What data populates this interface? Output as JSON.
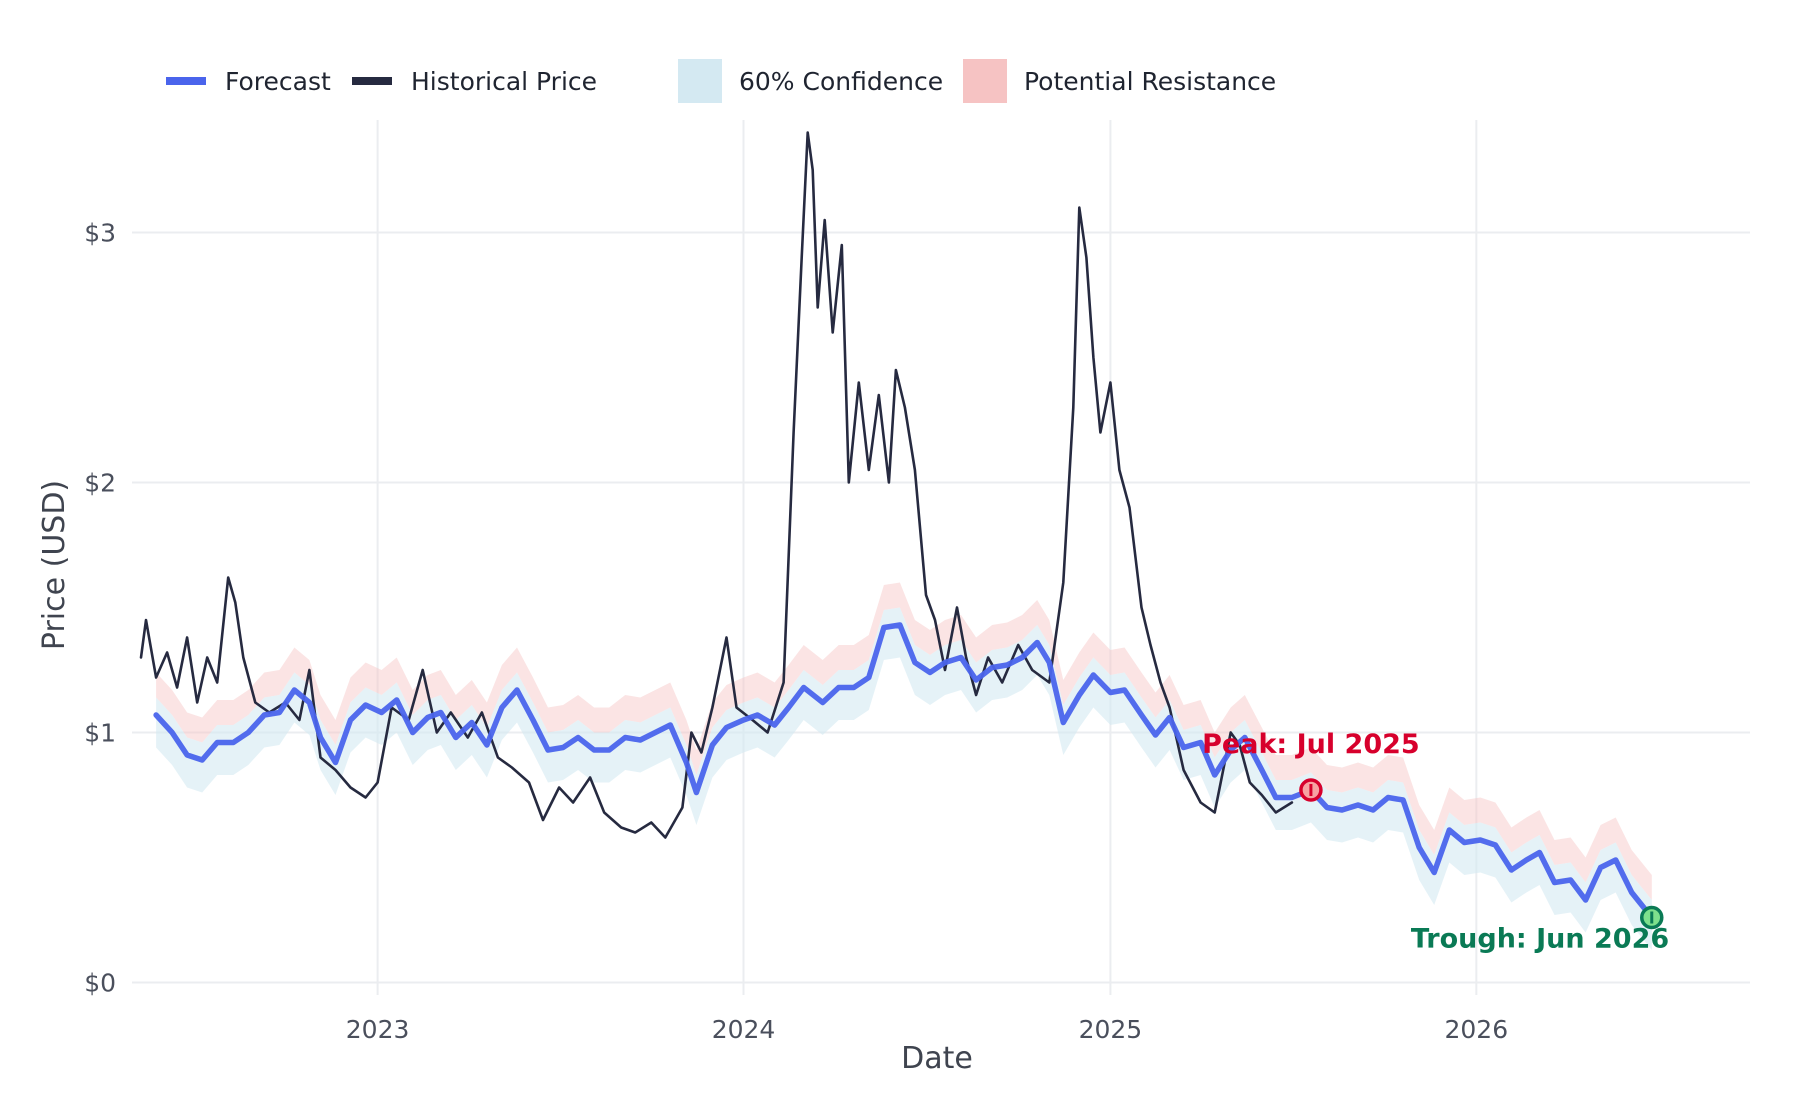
{
  "chart_data": {
    "type": "line",
    "xlabel": "Date",
    "ylabel": "Price (USD)",
    "xlim": [
      "2022-05-01",
      "2026-10-01"
    ],
    "ylim": [
      -0.05,
      3.45
    ],
    "x_ticks": [
      {
        "date": "2023-01-01",
        "label": "2023"
      },
      {
        "date": "2024-01-01",
        "label": "2024"
      },
      {
        "date": "2025-01-01",
        "label": "2025"
      },
      {
        "date": "2026-01-01",
        "label": "2026"
      }
    ],
    "y_ticks": [
      {
        "value": 0,
        "label": "$0"
      },
      {
        "value": 1,
        "label": "$1"
      },
      {
        "value": 2,
        "label": "$2"
      },
      {
        "value": 3,
        "label": "$3"
      }
    ],
    "grid": true,
    "legend": {
      "position": "top",
      "items": [
        {
          "key": "forecast",
          "label": "Forecast",
          "color": "#4a64ec",
          "kind": "line"
        },
        {
          "key": "historical",
          "label": "Historical Price",
          "color": "#262a40",
          "kind": "line"
        },
        {
          "key": "confidence",
          "label": "60% Confidence",
          "color": "#d4e9f2",
          "kind": "band"
        },
        {
          "key": "resistance",
          "label": "Potential Resistance",
          "color": "#f6c3c3",
          "kind": "band"
        }
      ]
    },
    "series": [
      {
        "name": "Historical Price",
        "color": "#262a40",
        "points": [
          [
            "2022-05-10",
            1.3
          ],
          [
            "2022-05-15",
            1.45
          ],
          [
            "2022-05-25",
            1.22
          ],
          [
            "2022-06-05",
            1.32
          ],
          [
            "2022-06-15",
            1.18
          ],
          [
            "2022-06-25",
            1.38
          ],
          [
            "2022-07-05",
            1.12
          ],
          [
            "2022-07-15",
            1.3
          ],
          [
            "2022-07-25",
            1.2
          ],
          [
            "2022-08-05",
            1.62
          ],
          [
            "2022-08-12",
            1.52
          ],
          [
            "2022-08-20",
            1.3
          ],
          [
            "2022-09-01",
            1.12
          ],
          [
            "2022-09-15",
            1.08
          ],
          [
            "2022-10-01",
            1.12
          ],
          [
            "2022-10-15",
            1.05
          ],
          [
            "2022-10-25",
            1.25
          ],
          [
            "2022-11-05",
            0.9
          ],
          [
            "2022-11-20",
            0.85
          ],
          [
            "2022-12-05",
            0.78
          ],
          [
            "2022-12-20",
            0.74
          ],
          [
            "2023-01-01",
            0.8
          ],
          [
            "2023-01-15",
            1.1
          ],
          [
            "2023-02-01",
            1.05
          ],
          [
            "2023-02-15",
            1.25
          ],
          [
            "2023-03-01",
            1.0
          ],
          [
            "2023-03-15",
            1.08
          ],
          [
            "2023-04-01",
            0.98
          ],
          [
            "2023-04-15",
            1.08
          ],
          [
            "2023-05-01",
            0.9
          ],
          [
            "2023-05-15",
            0.86
          ],
          [
            "2023-06-01",
            0.8
          ],
          [
            "2023-06-15",
            0.65
          ],
          [
            "2023-07-01",
            0.78
          ],
          [
            "2023-07-15",
            0.72
          ],
          [
            "2023-08-01",
            0.82
          ],
          [
            "2023-08-15",
            0.68
          ],
          [
            "2023-09-01",
            0.62
          ],
          [
            "2023-09-15",
            0.6
          ],
          [
            "2023-10-01",
            0.64
          ],
          [
            "2023-10-15",
            0.58
          ],
          [
            "2023-11-01",
            0.7
          ],
          [
            "2023-11-10",
            1.0
          ],
          [
            "2023-11-20",
            0.92
          ],
          [
            "2023-12-01",
            1.1
          ],
          [
            "2023-12-15",
            1.38
          ],
          [
            "2023-12-25",
            1.1
          ],
          [
            "2024-01-10",
            1.05
          ],
          [
            "2024-01-25",
            1.0
          ],
          [
            "2024-02-10",
            1.2
          ],
          [
            "2024-02-20",
            2.2
          ],
          [
            "2024-02-28",
            2.9
          ],
          [
            "2024-03-05",
            3.4
          ],
          [
            "2024-03-10",
            3.25
          ],
          [
            "2024-03-15",
            2.7
          ],
          [
            "2024-03-22",
            3.05
          ],
          [
            "2024-03-30",
            2.6
          ],
          [
            "2024-04-08",
            2.95
          ],
          [
            "2024-04-15",
            2.0
          ],
          [
            "2024-04-25",
            2.4
          ],
          [
            "2024-05-05",
            2.05
          ],
          [
            "2024-05-15",
            2.35
          ],
          [
            "2024-05-25",
            2.0
          ],
          [
            "2024-06-01",
            2.45
          ],
          [
            "2024-06-10",
            2.3
          ],
          [
            "2024-06-20",
            2.05
          ],
          [
            "2024-07-01",
            1.55
          ],
          [
            "2024-07-10",
            1.45
          ],
          [
            "2024-07-20",
            1.25
          ],
          [
            "2024-08-01",
            1.5
          ],
          [
            "2024-08-10",
            1.3
          ],
          [
            "2024-08-20",
            1.15
          ],
          [
            "2024-09-01",
            1.3
          ],
          [
            "2024-09-15",
            1.2
          ],
          [
            "2024-10-01",
            1.35
          ],
          [
            "2024-10-15",
            1.25
          ],
          [
            "2024-11-01",
            1.2
          ],
          [
            "2024-11-15",
            1.6
          ],
          [
            "2024-11-25",
            2.3
          ],
          [
            "2024-12-01",
            3.1
          ],
          [
            "2024-12-08",
            2.9
          ],
          [
            "2024-12-15",
            2.5
          ],
          [
            "2024-12-22",
            2.2
          ],
          [
            "2025-01-01",
            2.4
          ],
          [
            "2025-01-10",
            2.05
          ],
          [
            "2025-01-20",
            1.9
          ],
          [
            "2025-02-01",
            1.5
          ],
          [
            "2025-02-10",
            1.35
          ],
          [
            "2025-02-20",
            1.2
          ],
          [
            "2025-03-01",
            1.1
          ],
          [
            "2025-03-15",
            0.85
          ],
          [
            "2025-04-01",
            0.72
          ],
          [
            "2025-04-15",
            0.68
          ],
          [
            "2025-05-01",
            1.0
          ],
          [
            "2025-05-10",
            0.95
          ],
          [
            "2025-05-20",
            0.8
          ],
          [
            "2025-06-01",
            0.75
          ],
          [
            "2025-06-15",
            0.68
          ],
          [
            "2025-07-01",
            0.72
          ]
        ]
      },
      {
        "name": "Forecast",
        "color": "#4a64ec",
        "points": [
          [
            "2022-05-25",
            1.07
          ],
          [
            "2022-06-10",
            1.0
          ],
          [
            "2022-06-25",
            0.91
          ],
          [
            "2022-07-10",
            0.89
          ],
          [
            "2022-07-25",
            0.96
          ],
          [
            "2022-08-10",
            0.96
          ],
          [
            "2022-08-25",
            1.0
          ],
          [
            "2022-09-10",
            1.07
          ],
          [
            "2022-09-25",
            1.08
          ],
          [
            "2022-10-10",
            1.17
          ],
          [
            "2022-10-25",
            1.12
          ],
          [
            "2022-11-05",
            0.98
          ],
          [
            "2022-11-20",
            0.88
          ],
          [
            "2022-12-05",
            1.05
          ],
          [
            "2022-12-20",
            1.11
          ],
          [
            "2023-01-05",
            1.08
          ],
          [
            "2023-01-20",
            1.13
          ],
          [
            "2023-02-05",
            1.0
          ],
          [
            "2023-02-20",
            1.06
          ],
          [
            "2023-03-05",
            1.08
          ],
          [
            "2023-03-20",
            0.98
          ],
          [
            "2023-04-05",
            1.04
          ],
          [
            "2023-04-20",
            0.95
          ],
          [
            "2023-05-05",
            1.1
          ],
          [
            "2023-05-20",
            1.17
          ],
          [
            "2023-06-05",
            1.05
          ],
          [
            "2023-06-20",
            0.93
          ],
          [
            "2023-07-05",
            0.94
          ],
          [
            "2023-07-20",
            0.98
          ],
          [
            "2023-08-05",
            0.93
          ],
          [
            "2023-08-20",
            0.93
          ],
          [
            "2023-09-05",
            0.98
          ],
          [
            "2023-09-20",
            0.97
          ],
          [
            "2023-10-05",
            1.0
          ],
          [
            "2023-10-20",
            1.03
          ],
          [
            "2023-11-05",
            0.88
          ],
          [
            "2023-11-15",
            0.76
          ],
          [
            "2023-12-01",
            0.95
          ],
          [
            "2023-12-15",
            1.02
          ],
          [
            "2024-01-01",
            1.05
          ],
          [
            "2024-01-15",
            1.07
          ],
          [
            "2024-02-01",
            1.03
          ],
          [
            "2024-02-15",
            1.1
          ],
          [
            "2024-03-01",
            1.18
          ],
          [
            "2024-03-20",
            1.12
          ],
          [
            "2024-04-05",
            1.18
          ],
          [
            "2024-04-20",
            1.18
          ],
          [
            "2024-05-05",
            1.22
          ],
          [
            "2024-05-20",
            1.42
          ],
          [
            "2024-06-05",
            1.43
          ],
          [
            "2024-06-20",
            1.28
          ],
          [
            "2024-07-05",
            1.24
          ],
          [
            "2024-07-20",
            1.28
          ],
          [
            "2024-08-05",
            1.3
          ],
          [
            "2024-08-20",
            1.21
          ],
          [
            "2024-09-05",
            1.26
          ],
          [
            "2024-09-20",
            1.27
          ],
          [
            "2024-10-05",
            1.3
          ],
          [
            "2024-10-20",
            1.36
          ],
          [
            "2024-11-01",
            1.28
          ],
          [
            "2024-11-15",
            1.04
          ],
          [
            "2024-12-01",
            1.15
          ],
          [
            "2024-12-15",
            1.23
          ],
          [
            "2025-01-01",
            1.16
          ],
          [
            "2025-01-15",
            1.17
          ],
          [
            "2025-02-01",
            1.07
          ],
          [
            "2025-02-15",
            0.99
          ],
          [
            "2025-03-01",
            1.06
          ],
          [
            "2025-03-15",
            0.94
          ],
          [
            "2025-04-01",
            0.96
          ],
          [
            "2025-04-15",
            0.83
          ],
          [
            "2025-05-01",
            0.93
          ],
          [
            "2025-05-15",
            0.98
          ],
          [
            "2025-06-01",
            0.85
          ],
          [
            "2025-06-15",
            0.74
          ],
          [
            "2025-07-01",
            0.74
          ],
          [
            "2025-07-20",
            0.77
          ],
          [
            "2025-08-05",
            0.7
          ],
          [
            "2025-08-20",
            0.69
          ],
          [
            "2025-09-05",
            0.71
          ],
          [
            "2025-09-20",
            0.69
          ],
          [
            "2025-10-05",
            0.74
          ],
          [
            "2025-10-20",
            0.73
          ],
          [
            "2025-11-05",
            0.54
          ],
          [
            "2025-11-20",
            0.44
          ],
          [
            "2025-12-05",
            0.61
          ],
          [
            "2025-12-20",
            0.56
          ],
          [
            "2026-01-05",
            0.57
          ],
          [
            "2026-01-20",
            0.55
          ],
          [
            "2026-02-05",
            0.45
          ],
          [
            "2026-02-20",
            0.49
          ],
          [
            "2026-03-05",
            0.52
          ],
          [
            "2026-03-20",
            0.4
          ],
          [
            "2026-04-05",
            0.41
          ],
          [
            "2026-04-20",
            0.33
          ],
          [
            "2026-05-05",
            0.46
          ],
          [
            "2026-05-20",
            0.49
          ],
          [
            "2026-06-05",
            0.36
          ],
          [
            "2026-06-25",
            0.26
          ]
        ]
      }
    ],
    "bands": {
      "confidence_lower_offset": 0.13,
      "confidence_upper_offset": 0.07,
      "resistance_lower_offset": 0.07,
      "resistance_upper_offset": 0.17
    },
    "annotations": [
      {
        "key": "peak",
        "text": "Peak: Jul 2025",
        "date": "2025-07-20",
        "value": 0.77,
        "color": "#d7002c",
        "fill": "#f7a3a3"
      },
      {
        "key": "trough",
        "text": "Trough: Jun 2026",
        "date": "2026-06-25",
        "value": 0.26,
        "color": "#0a7a55",
        "fill": "#7ee08c"
      }
    ]
  }
}
